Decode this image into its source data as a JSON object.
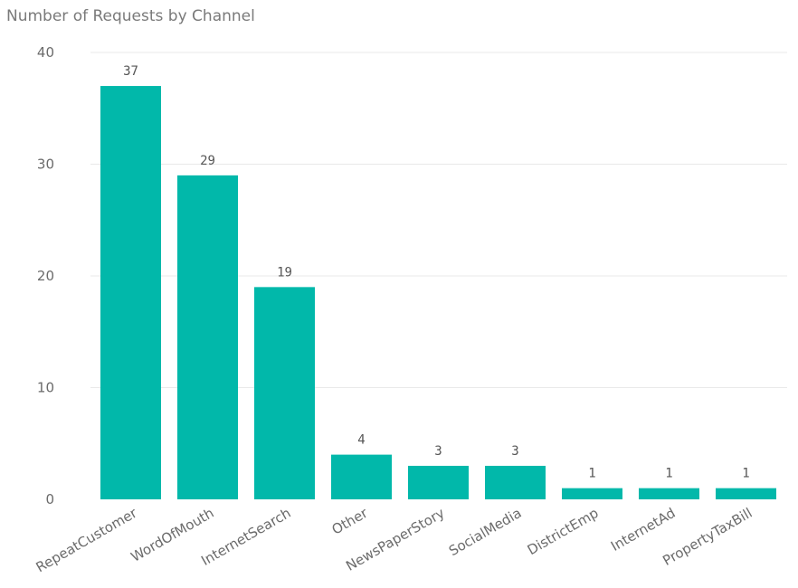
{
  "chart_data": {
    "type": "bar",
    "title": "Number of Requests by Channel",
    "xlabel": "",
    "ylabel": "",
    "categories": [
      "RepeatCustomer",
      "WordOfMouth",
      "InternetSearch",
      "Other",
      "NewsPaperStory",
      "SocialMedia",
      "DistrictEmp",
      "InternetAd",
      "PropertyTaxBill"
    ],
    "values": [
      37,
      29,
      19,
      4,
      3,
      3,
      1,
      1,
      1
    ],
    "ylim": [
      0,
      40
    ],
    "yticks": [
      0,
      10,
      20,
      30,
      40
    ],
    "grid": true,
    "data_labels": true,
    "bar_color": "#01B8AA"
  }
}
